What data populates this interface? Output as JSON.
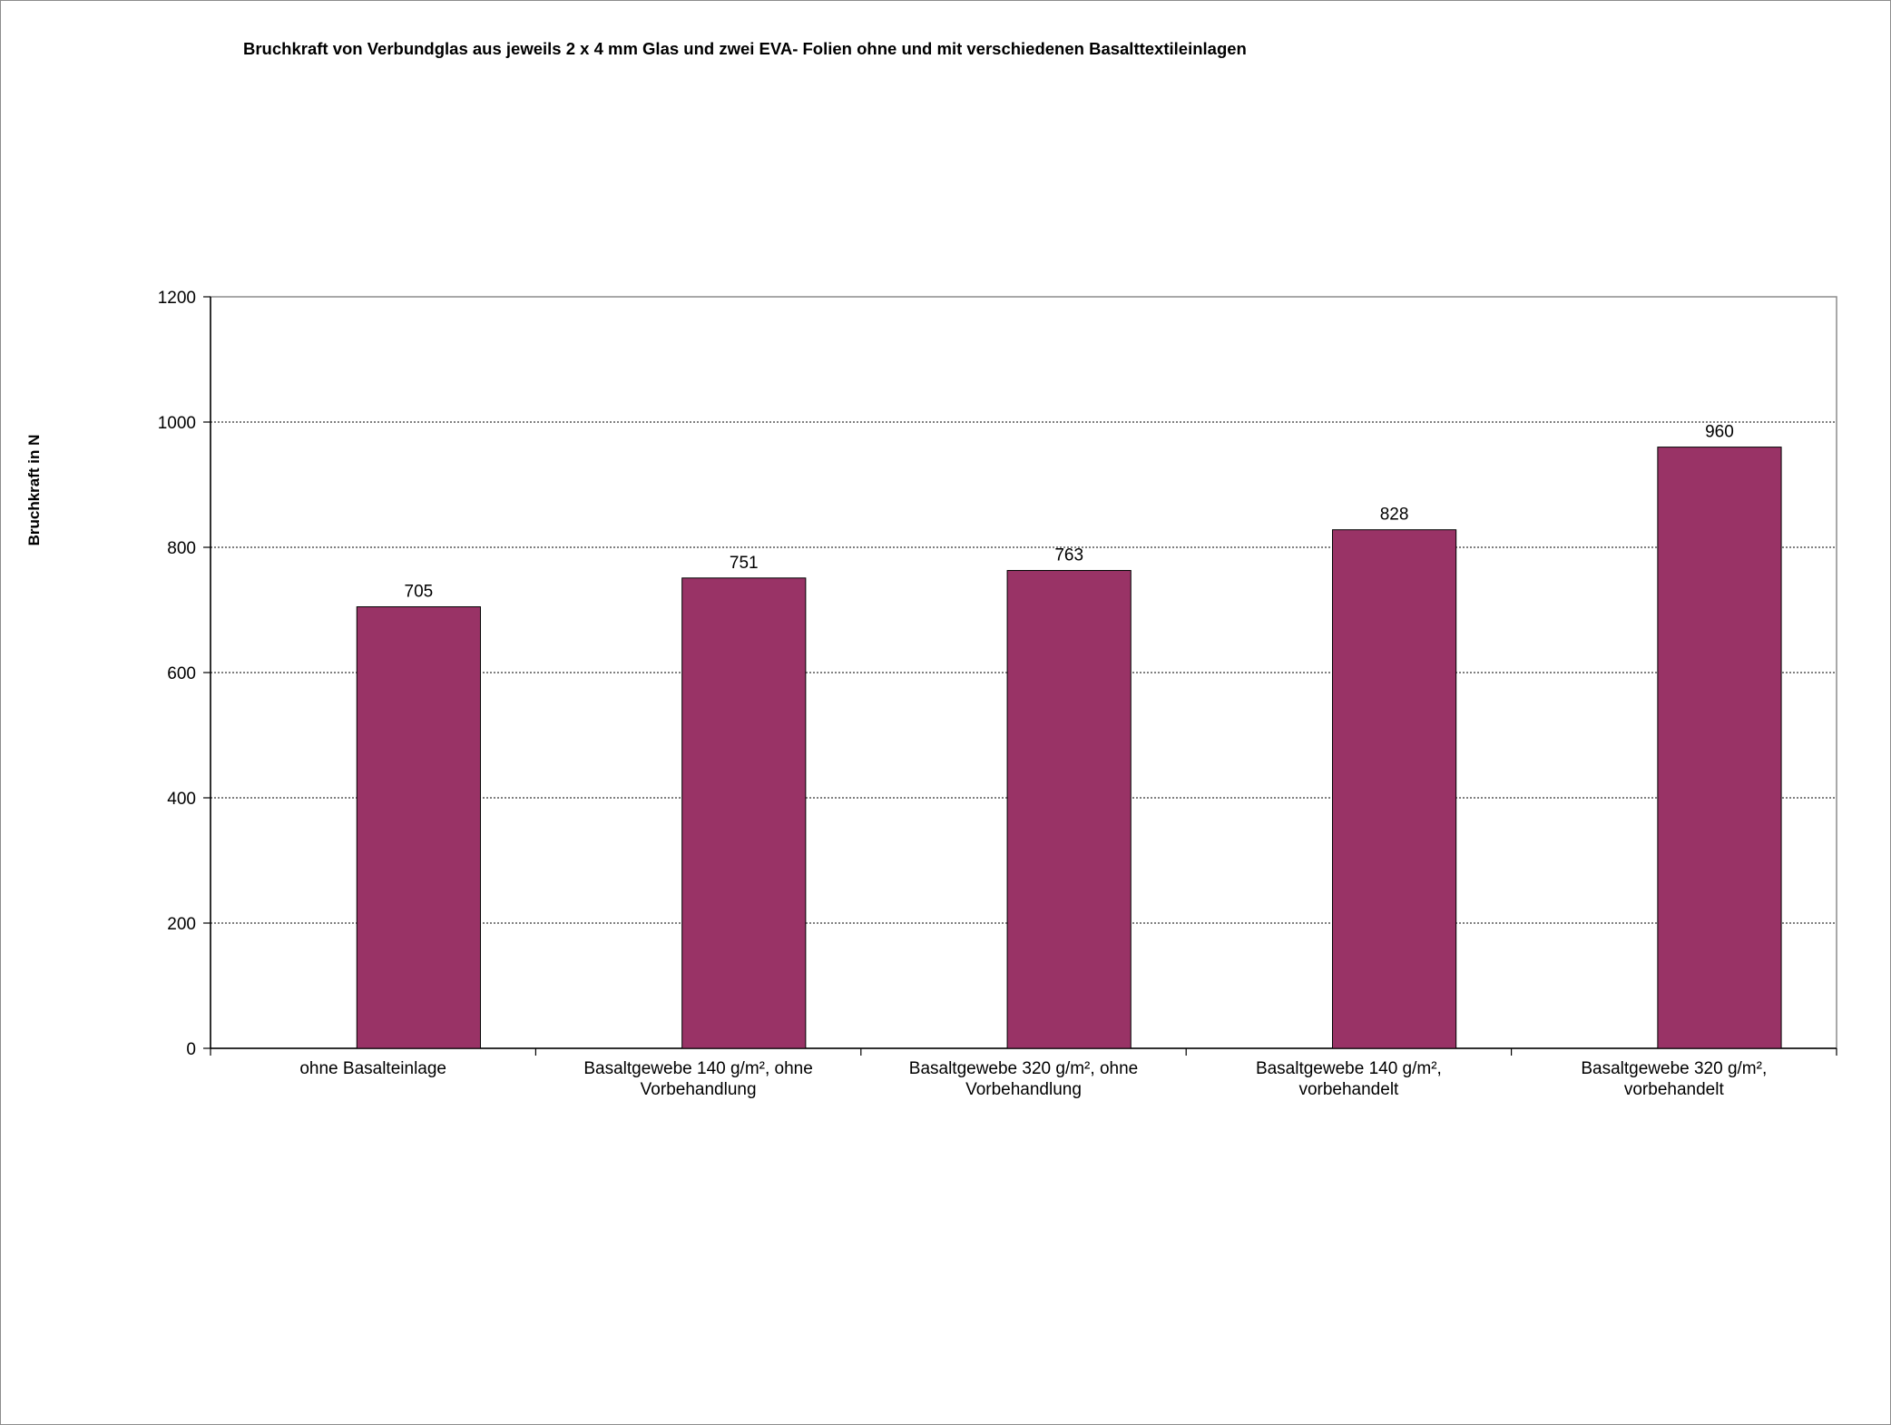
{
  "chart_data": {
    "type": "bar",
    "title": "Bruchkraft  von Verbundglas  aus  jeweils 2 x 4 mm Glas und   zwei EVA- Folien ohne und mit verschiedenen Basalttextileinlagen",
    "ylabel": "Bruchkraft  in N",
    "xlabel": "",
    "ylim": [
      0,
      1200
    ],
    "yticks": [
      "0",
      "200",
      "400",
      "600",
      "800",
      "1000",
      "1200"
    ],
    "grid": true,
    "legend": "none",
    "bar_color": "#993366",
    "categories": [
      "ohne Basalteinlage",
      "Basaltgewebe     140 g/m², ohne\nVorbehandlung",
      "Basaltgewebe       320 g/m², ohne\nVorbehandlung",
      "Basaltgewebe      140 g/m²,\nvorbehandelt",
      "Basaltgewebe       320 g/m²,\nvorbehandelt"
    ],
    "values": [
      705,
      751,
      763,
      828,
      960
    ],
    "data_labels": [
      "705",
      "751",
      "763",
      "828",
      "960"
    ]
  }
}
